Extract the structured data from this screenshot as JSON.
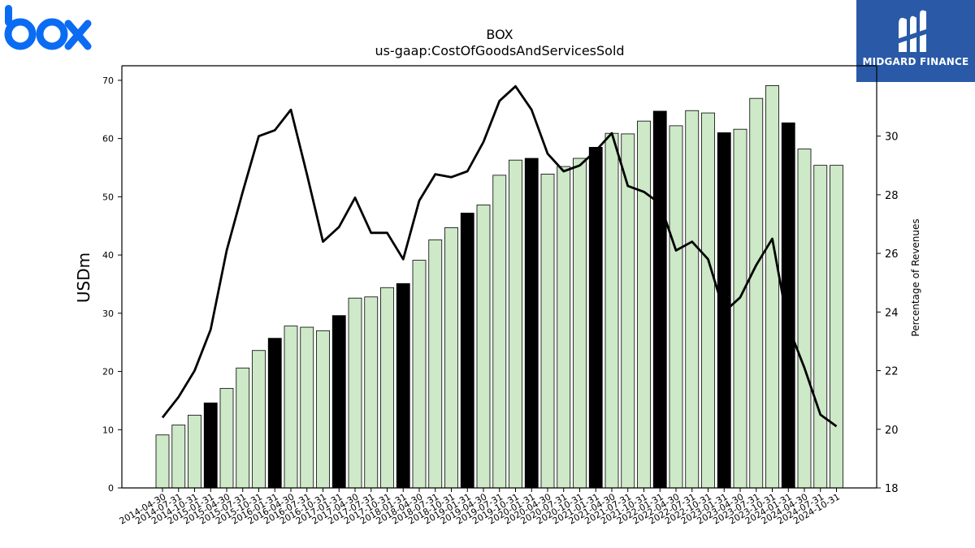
{
  "logos": {
    "left": {
      "icon": "box-logo",
      "text": "box",
      "color": "#0a6cf3"
    },
    "right": {
      "icon": "midgard-finance-logo",
      "text": "MIDGARD FINANCE",
      "background": "#2a5aa7"
    }
  },
  "chart_data": {
    "type": "bar",
    "title": "BOX",
    "subtitle": "us-gaap:CostOfGoodsAndServicesSold",
    "ylabel": "USDm",
    "y2label": "Percentage of Revenues",
    "ylim": [
      0,
      72.5
    ],
    "y2lim": [
      18,
      32.4
    ],
    "yticks": [
      0,
      10,
      20,
      30,
      40,
      50,
      60,
      70
    ],
    "y2ticks": [
      18,
      20,
      22,
      24,
      26,
      28,
      30
    ],
    "grid": false,
    "legend": "none",
    "colors": {
      "bar": "#cde9c8",
      "bar_highlight": "#000000",
      "line": "#000000"
    },
    "categories": [
      "2014-04-30",
      "2014-07-31",
      "2014-10-31",
      "2015-01-31",
      "2015-04-30",
      "2015-07-31",
      "2015-10-31",
      "2016-01-31",
      "2016-04-30",
      "2016-07-31",
      "2016-10-31",
      "2017-01-31",
      "2017-04-30",
      "2017-07-31",
      "2017-10-31",
      "2018-01-31",
      "2018-04-30",
      "2018-07-31",
      "2018-10-31",
      "2019-01-31",
      "2019-04-30",
      "2019-07-31",
      "2019-10-31",
      "2020-01-31",
      "2020-04-30",
      "2020-07-31",
      "2020-10-31",
      "2021-01-31",
      "2021-04-30",
      "2021-07-31",
      "2021-10-31",
      "2022-01-31",
      "2022-04-30",
      "2022-07-31",
      "2022-10-31",
      "2023-01-31",
      "2023-04-30",
      "2023-07-31",
      "2023-10-31",
      "2024-01-31",
      "2024-04-30",
      "2024-07-31",
      "2024-10-31"
    ],
    "values": [
      9.1,
      10.8,
      12.5,
      14.6,
      17.1,
      20.6,
      23.6,
      25.7,
      27.8,
      27.6,
      27.0,
      29.6,
      32.6,
      32.8,
      34.4,
      35.1,
      39.1,
      42.6,
      44.7,
      47.2,
      48.6,
      53.7,
      56.3,
      56.6,
      53.9,
      55.2,
      56.6,
      58.5,
      60.9,
      60.8,
      63.0,
      64.7,
      62.2,
      64.8,
      64.4,
      61.0,
      61.6,
      66.9,
      69.1,
      62.7,
      58.2,
      55.4,
      55.4
    ],
    "highlight": [
      false,
      false,
      false,
      true,
      false,
      false,
      false,
      true,
      false,
      false,
      false,
      true,
      false,
      false,
      false,
      true,
      false,
      false,
      false,
      true,
      false,
      false,
      false,
      true,
      false,
      false,
      false,
      true,
      false,
      false,
      false,
      true,
      false,
      false,
      false,
      true,
      false,
      false,
      false,
      true,
      false,
      false,
      false
    ],
    "percent_of_revenues": [
      20.4,
      21.1,
      22.0,
      23.4,
      26.1,
      28.1,
      30.0,
      30.2,
      30.9,
      28.7,
      26.4,
      26.9,
      27.9,
      26.7,
      26.7,
      25.8,
      27.8,
      28.7,
      28.6,
      28.8,
      29.8,
      31.2,
      31.7,
      30.9,
      29.4,
      28.8,
      29.0,
      29.5,
      30.1,
      28.3,
      28.1,
      27.7,
      26.1,
      26.4,
      25.8,
      24.0,
      24.5,
      25.6,
      26.5,
      23.5,
      22.1,
      20.5,
      20.1
    ]
  }
}
